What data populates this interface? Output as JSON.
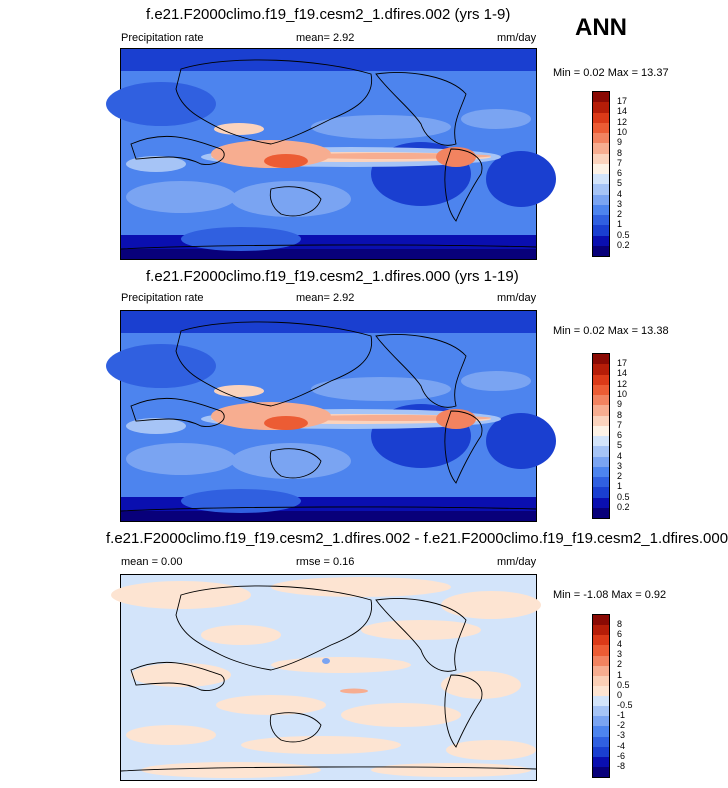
{
  "season": "ANN",
  "colors": {
    "prec": [
      "#08007a",
      "#0a0fb0",
      "#1a3fd0",
      "#3060e0",
      "#4d84ee",
      "#7aa4f2",
      "#a6c4f6",
      "#d3e4fa",
      "#fdf2e6",
      "#fbd3bd",
      "#f7ad90",
      "#f28360",
      "#ec5c34",
      "#db3a18",
      "#b51d08",
      "#8a0a04"
    ],
    "diff": [
      "#08007a",
      "#0a0fb0",
      "#1a3fd0",
      "#3060e0",
      "#4d84ee",
      "#7aa4f2",
      "#a6c4f6",
      "#d3e4fa",
      "#fde4d2",
      "#fbcfb6",
      "#f7ad90",
      "#f28360",
      "#ec5c34",
      "#db3a18",
      "#b51d08",
      "#8a0a04"
    ]
  },
  "panels": [
    {
      "title": "f.e21.F2000climo.f19_f19.cesm2_1.dfires.002 (yrs 1-9)",
      "variable": "Precipitation rate",
      "mean": "mean=   2.92",
      "units": "mm/day",
      "minmax": "Min =   0.02 Max =  13.37",
      "ticks": [
        "17",
        "14",
        "12",
        "10",
        "9",
        "8",
        "7",
        "6",
        "5",
        "4",
        "3",
        "2",
        "1",
        "0.5",
        "0.2"
      ]
    },
    {
      "title": "f.e21.F2000climo.f19_f19.cesm2_1.dfires.000 (yrs 1-19)",
      "variable": "Precipitation rate",
      "mean": "mean=   2.92",
      "units": "mm/day",
      "minmax": "Min =   0.02 Max =  13.38",
      "ticks": [
        "17",
        "14",
        "12",
        "10",
        "9",
        "8",
        "7",
        "6",
        "5",
        "4",
        "3",
        "2",
        "1",
        "0.5",
        "0.2"
      ]
    },
    {
      "title": "f.e21.F2000climo.f19_f19.cesm2_1.dfires.002 - f.e21.F2000climo.f19_f19.cesm2_1.dfires.000",
      "mean": "mean =   0.00",
      "rmse": "rmse =   0.16",
      "units": "mm/day",
      "minmax": "Min =  -1.08 Max =   0.92",
      "ticks": [
        "8",
        "6",
        "4",
        "3",
        "2",
        "1",
        "0.5",
        "0",
        "-0.5",
        "-1",
        "-2",
        "-3",
        "-4",
        "-6",
        "-8"
      ]
    }
  ]
}
